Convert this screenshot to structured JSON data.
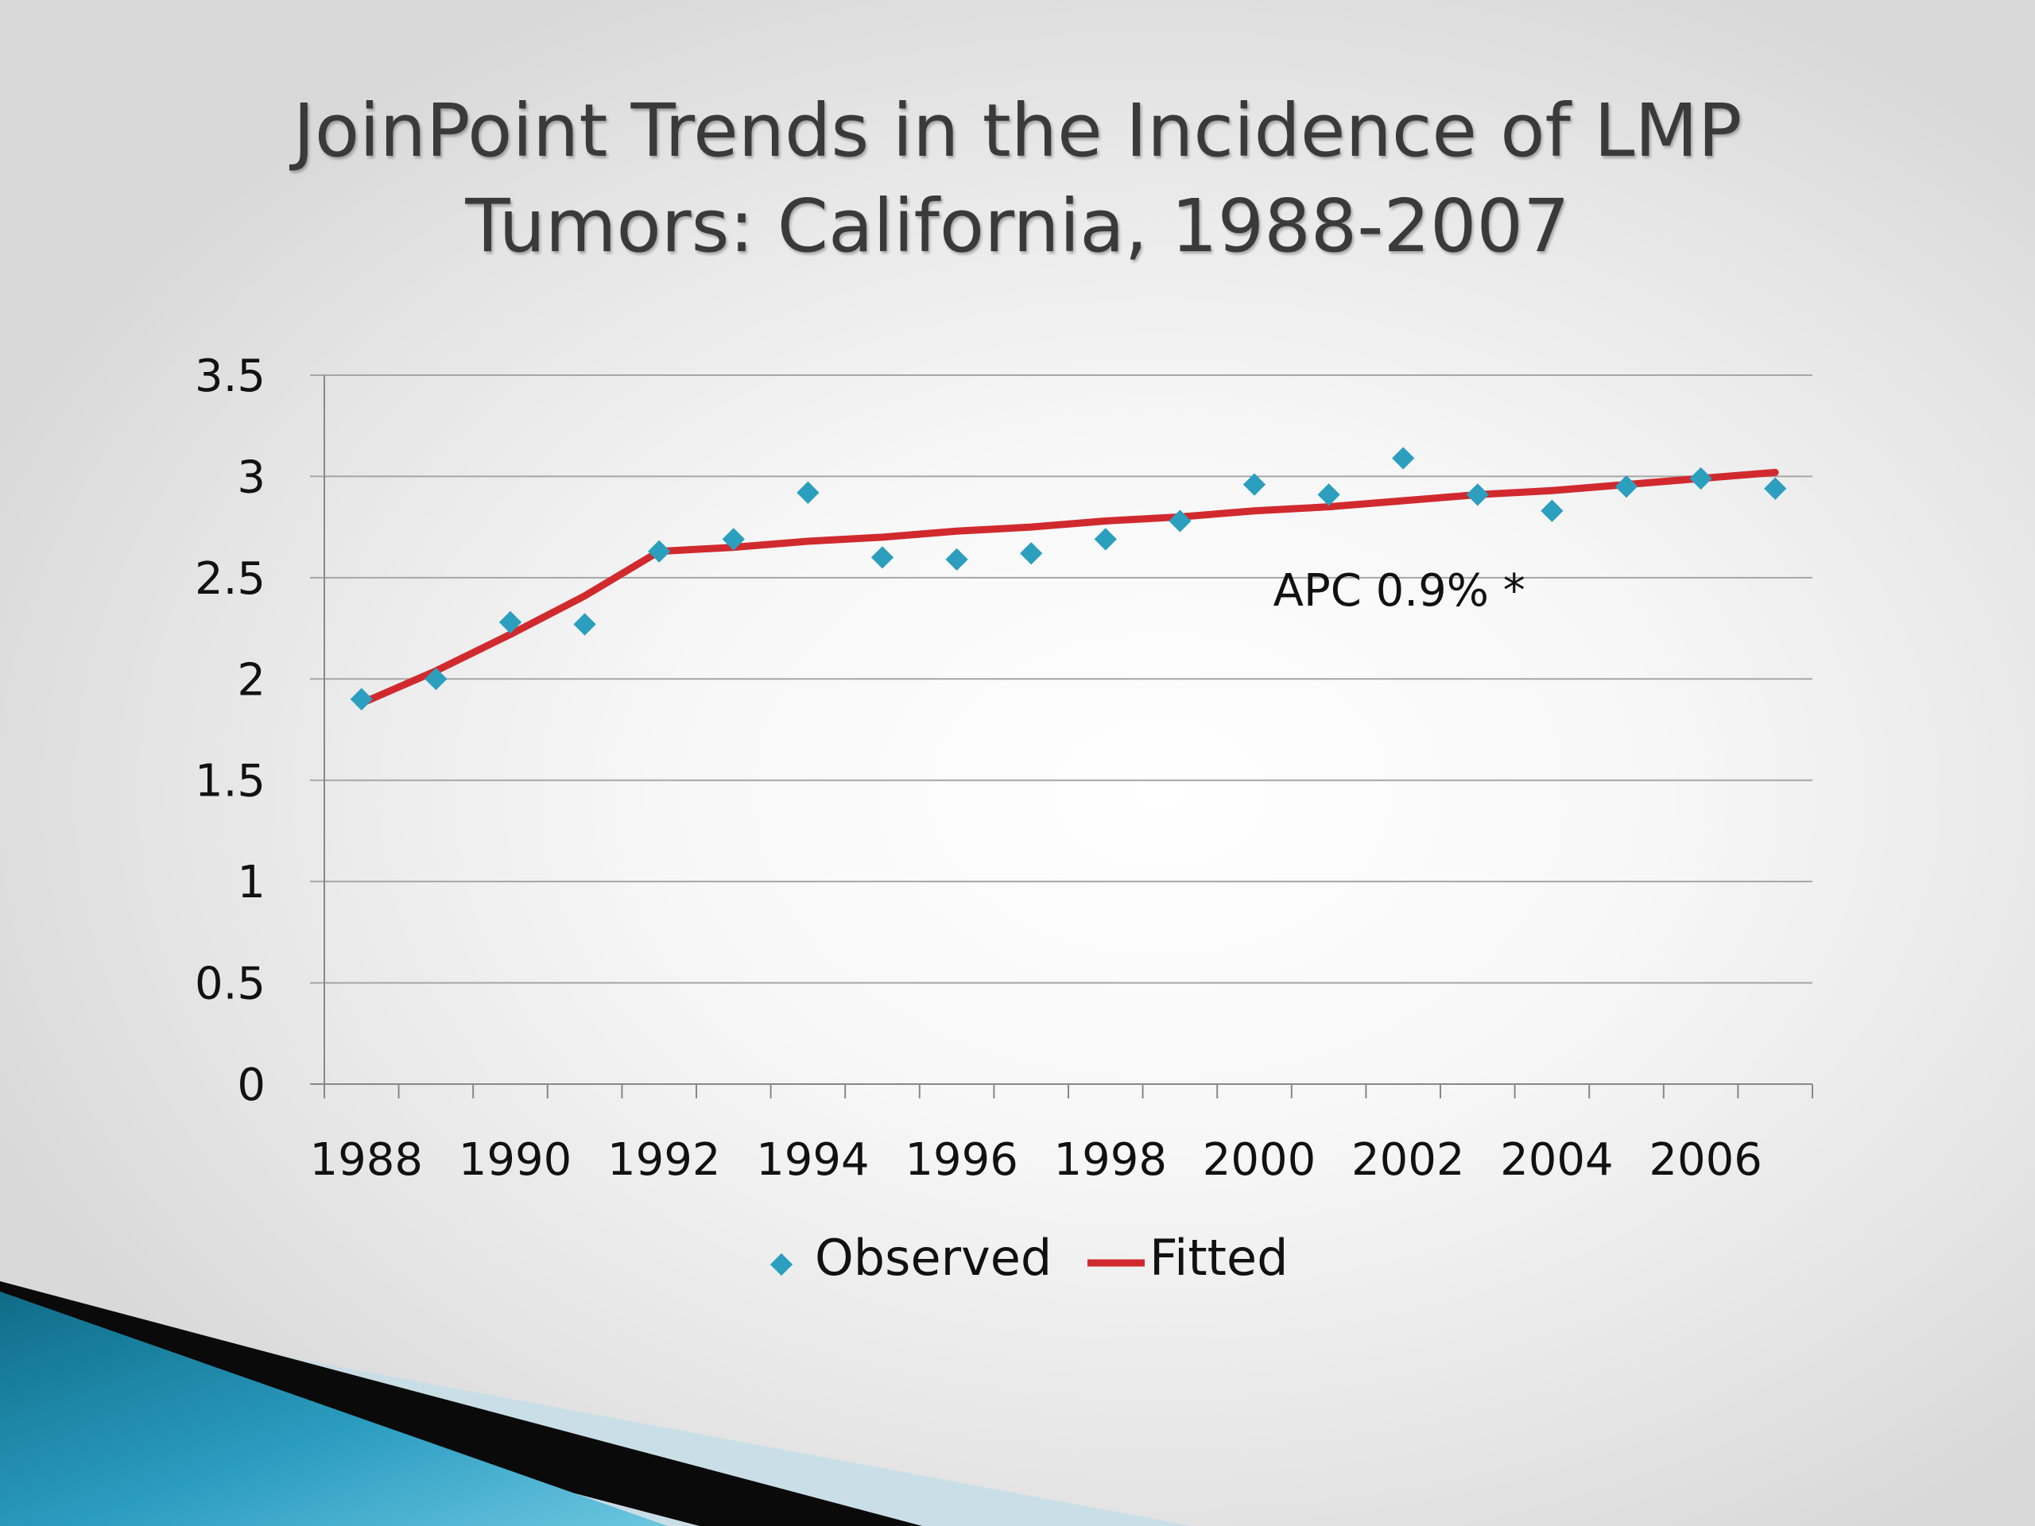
{
  "slide": {
    "title_line1": "JoinPoint Trends in the Incidence of LMP",
    "title_line2": "Tumors: California, 1988-2007"
  },
  "colors": {
    "observed": "#2c9fbf",
    "fitted": "#d12a2e",
    "gridline": "#a6a6a6",
    "axis": "#888888",
    "accent_teal": "#1b7b97",
    "accent_black": "#0a0a0a"
  },
  "chart_data": {
    "type": "scatter",
    "title": "",
    "xlabel": "",
    "ylabel": "",
    "ylim": [
      0,
      3.5
    ],
    "xlim": [
      1987.5,
      2007.5
    ],
    "y_ticks": [
      0,
      0.5,
      1,
      1.5,
      2,
      2.5,
      3,
      3.5
    ],
    "y_tick_labels": [
      "0",
      "0.5",
      "1",
      "1.5",
      "2",
      "2.5",
      "3",
      "3.5"
    ],
    "x_tick_labels": [
      "1988",
      "1990",
      "1992",
      "1994",
      "1996",
      "1998",
      "2000",
      "2002",
      "2004",
      "2006"
    ],
    "x_tick_label_years": [
      1988,
      1990,
      1992,
      1994,
      1996,
      1998,
      2000,
      2002,
      2004,
      2006
    ],
    "grid": true,
    "legend_position": "bottom",
    "series": [
      {
        "name": "Observed",
        "kind": "markers",
        "marker": "diamond",
        "x": [
          1988,
          1989,
          1990,
          1991,
          1992,
          1993,
          1994,
          1995,
          1996,
          1997,
          1998,
          1999,
          2000,
          2001,
          2002,
          2003,
          2004,
          2005,
          2006,
          2007
        ],
        "y": [
          1.9,
          2.0,
          2.28,
          2.27,
          2.63,
          2.69,
          2.92,
          2.6,
          2.59,
          2.62,
          2.69,
          2.78,
          2.96,
          2.91,
          3.09,
          2.91,
          2.83,
          2.95,
          2.99,
          2.94
        ]
      },
      {
        "name": "Fitted",
        "kind": "line",
        "x": [
          1988,
          1989,
          1990,
          1991,
          1992,
          1993,
          1994,
          1995,
          1996,
          1997,
          1998,
          1999,
          2000,
          2001,
          2002,
          2003,
          2004,
          2005,
          2006,
          2007
        ],
        "y": [
          1.88,
          2.04,
          2.22,
          2.41,
          2.63,
          2.65,
          2.68,
          2.7,
          2.73,
          2.75,
          2.78,
          2.8,
          2.83,
          2.85,
          2.88,
          2.91,
          2.93,
          2.96,
          2.99,
          3.02
        ]
      }
    ],
    "annotations": [
      {
        "text": "APC 0.9% *",
        "x": 2002,
        "y": 2.44
      }
    ]
  }
}
